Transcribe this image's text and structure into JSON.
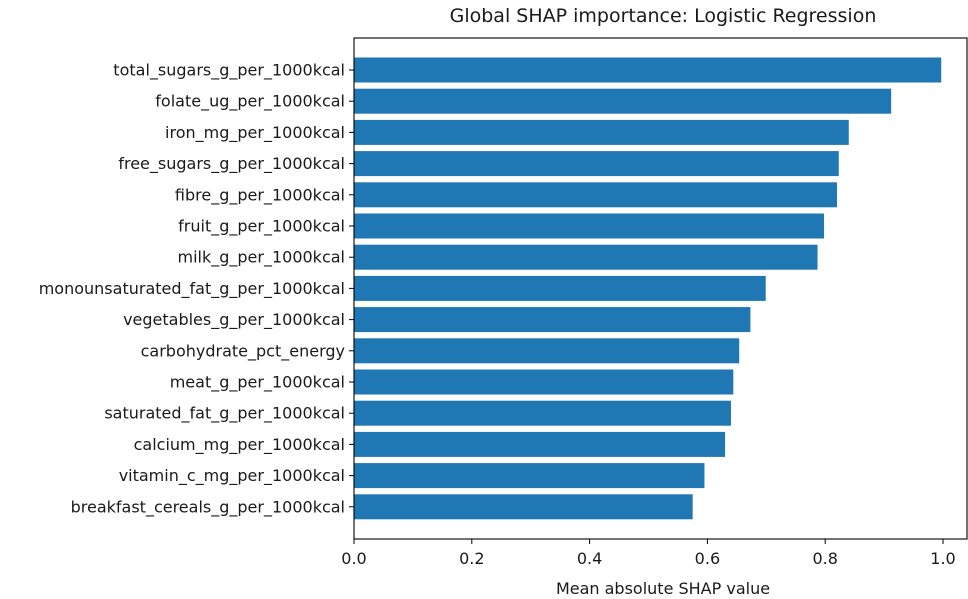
{
  "chart_data": {
    "type": "bar",
    "orientation": "horizontal",
    "title": "Global SHAP importance: Logistic Regression",
    "xlabel": "Mean absolute SHAP value",
    "ylabel": "",
    "xlim": [
      0,
      1.04
    ],
    "xticks": [
      "0.0",
      "0.2",
      "0.4",
      "0.6",
      "0.8",
      "1.0"
    ],
    "grid": false,
    "legend": "none",
    "bar_color": "#1f77b4",
    "categories": [
      "total_sugars_g_per_1000kcal",
      "folate_ug_per_1000kcal",
      "iron_mg_per_1000kcal",
      "free_sugars_g_per_1000kcal",
      "fibre_g_per_1000kcal",
      "fruit_g_per_1000kcal",
      "milk_g_per_1000kcal",
      "monounsaturated_fat_g_per_1000kcal",
      "vegetables_g_per_1000kcal",
      "carbohydrate_pct_energy",
      "meat_g_per_1000kcal",
      "saturated_fat_g_per_1000kcal",
      "calcium_mg_per_1000kcal",
      "vitamin_c_mg_per_1000kcal",
      "breakfast_cereals_g_per_1000kcal"
    ],
    "values": [
      0.997,
      0.912,
      0.84,
      0.823,
      0.82,
      0.798,
      0.787,
      0.699,
      0.673,
      0.654,
      0.644,
      0.64,
      0.63,
      0.595,
      0.575
    ]
  }
}
